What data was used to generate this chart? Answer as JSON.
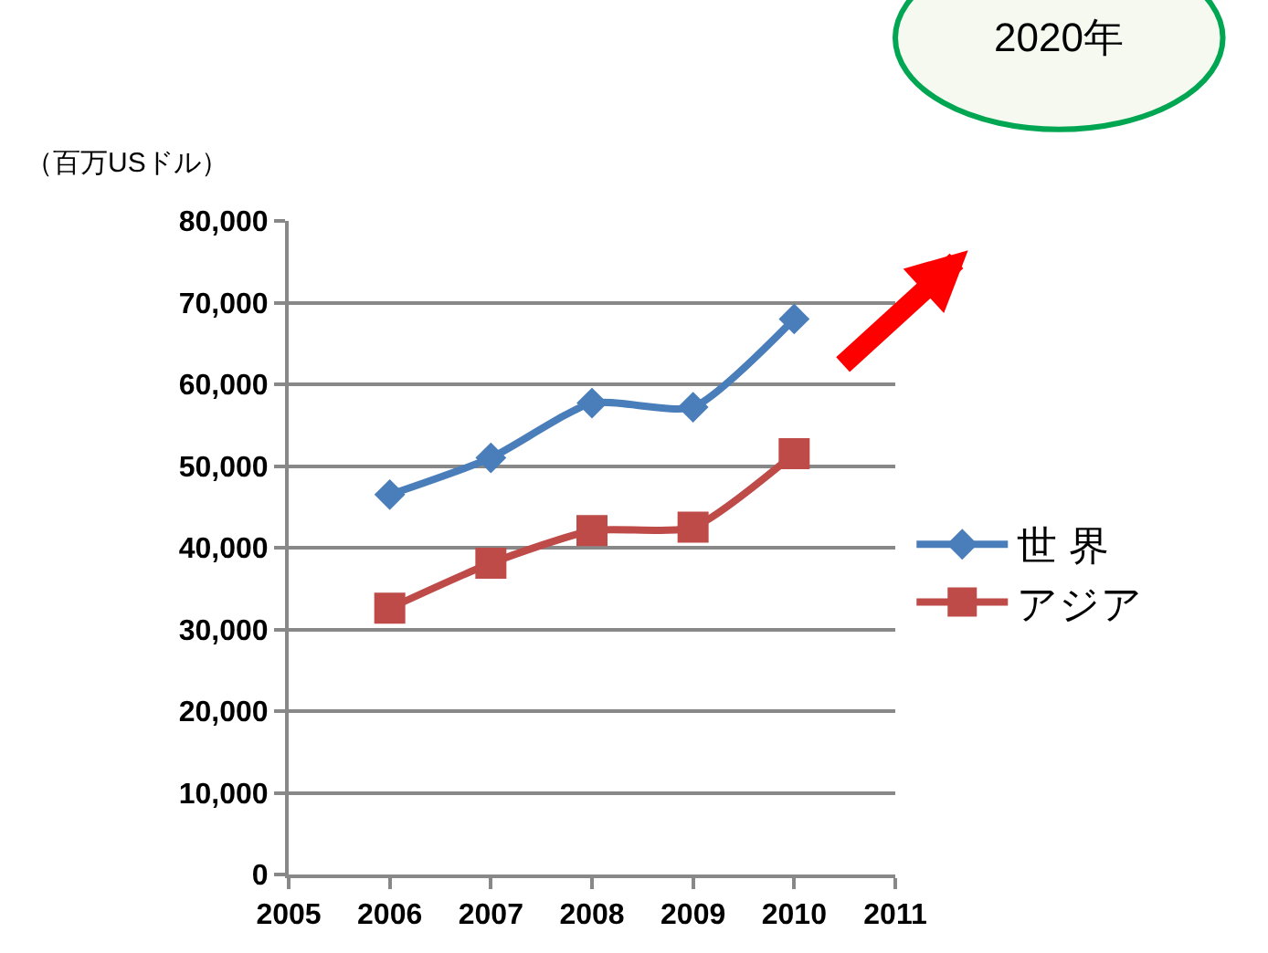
{
  "chart_data": {
    "type": "line",
    "ylabel": "（百万USドル）",
    "annotations": [
      "2020年"
    ],
    "x": [
      2006,
      2007,
      2008,
      2009,
      2010
    ],
    "series": [
      {
        "name": "世 界",
        "color": "#4a7ebb",
        "marker": "diamond",
        "values": [
          46500,
          51000,
          57700,
          57200,
          68000
        ]
      },
      {
        "name": "アジア",
        "color": "#be4b48",
        "marker": "square",
        "values": [
          32600,
          38100,
          42100,
          42500,
          51500
        ]
      }
    ],
    "xlim": [
      2005,
      2011
    ],
    "xticks": [
      2005,
      2006,
      2007,
      2008,
      2009,
      2010,
      2011
    ],
    "ylim": [
      0,
      80000
    ],
    "yticks": [
      {
        "value": 0,
        "label": "0"
      },
      {
        "value": 10000,
        "label": "10,000"
      },
      {
        "value": 20000,
        "label": "20,000"
      },
      {
        "value": 30000,
        "label": "30,000"
      },
      {
        "value": 40000,
        "label": "40,000"
      },
      {
        "value": 50000,
        "label": "50,000"
      },
      {
        "value": 60000,
        "label": "60,000"
      },
      {
        "value": 70000,
        "label": "70,000"
      },
      {
        "value": 80000,
        "label": "80,000"
      }
    ],
    "grid": "y",
    "legend": "right",
    "line_style": "solid"
  }
}
